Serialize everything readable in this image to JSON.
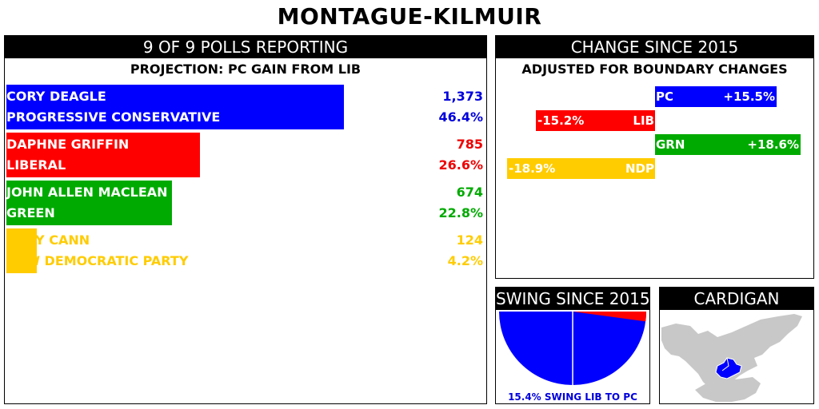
{
  "title": "MONTAGUE-KILMUIR",
  "results_panel": {
    "header": "9 OF 9 POLLS REPORTING",
    "projection": "PROJECTION: PC GAIN FROM LIB",
    "candidates": [
      {
        "name": "CORY DEAGLE",
        "party": "PROGRESSIVE CONSERVATIVE",
        "votes": "1,373",
        "percent": "46.4%",
        "share": 46.4,
        "color": "#0000ff",
        "text_color": "#ffffff",
        "num_color": "#0000dd"
      },
      {
        "name": "DAPHNE GRIFFIN",
        "party": "LIBERAL",
        "votes": "785",
        "percent": "26.6%",
        "share": 26.6,
        "color": "#ff0000",
        "text_color": "#ffffff",
        "num_color": "#ee0000"
      },
      {
        "name": "JOHN ALLEN MACLEAN",
        "party": "GREEN",
        "votes": "674",
        "percent": "22.8%",
        "share": 22.8,
        "color": "#00aa00",
        "text_color": "#ffffff",
        "num_color": "#00aa00"
      },
      {
        "name": "BILLY CANN",
        "party": "NEW DEMOCRATIC PARTY",
        "votes": "124",
        "percent": "4.2%",
        "share": 4.2,
        "color": "#ffcc00",
        "text_color": "#ffcc00",
        "num_color": "#ffcc00"
      }
    ]
  },
  "change_panel": {
    "header": "CHANGE SINCE 2015",
    "subheader": "ADJUSTED FOR BOUNDARY CHANGES",
    "max_abs": 20,
    "rows": [
      {
        "party": "PC",
        "value": 15.5,
        "label": "+15.5%",
        "color": "#0000ff",
        "label_color": "#ffffff"
      },
      {
        "party": "LIB",
        "value": -15.2,
        "label": "-15.2%",
        "color": "#ff0000",
        "label_color": "#ffffff"
      },
      {
        "party": "GRN",
        "value": 18.6,
        "label": "+18.6%",
        "color": "#00aa00",
        "label_color": "#ffffff"
      },
      {
        "party": "NDP",
        "value": -18.9,
        "label": "-18.9%",
        "color": "#ffcc00",
        "label_color": "#ffffff"
      }
    ]
  },
  "swing_panel": {
    "header": "SWING SINCE 2015",
    "caption": "15.4% SWING LIB TO PC",
    "swing": 15.4,
    "from_color": "#ff0000",
    "to_color": "#0000ff"
  },
  "region_panel": {
    "header": "CARDIGAN",
    "land_color": "#c8c8c8",
    "district_color": "#0000ff"
  },
  "chart_data": [
    {
      "type": "bar",
      "title": "9 OF 9 POLLS REPORTING",
      "categories": [
        "CORY DEAGLE",
        "DAPHNE GRIFFIN",
        "JOHN ALLEN MACLEAN",
        "BILLY CANN"
      ],
      "series": [
        {
          "name": "Votes",
          "values": [
            1373,
            785,
            674,
            124
          ]
        },
        {
          "name": "Percent",
          "values": [
            46.4,
            26.6,
            22.8,
            4.2
          ]
        }
      ]
    },
    {
      "type": "bar",
      "title": "CHANGE SINCE 2015",
      "categories": [
        "PC",
        "LIB",
        "GRN",
        "NDP"
      ],
      "values": [
        15.5,
        -15.2,
        18.6,
        -18.9
      ]
    },
    {
      "type": "pie",
      "title": "SWING SINCE 2015",
      "values": [
        15.4
      ]
    }
  ]
}
